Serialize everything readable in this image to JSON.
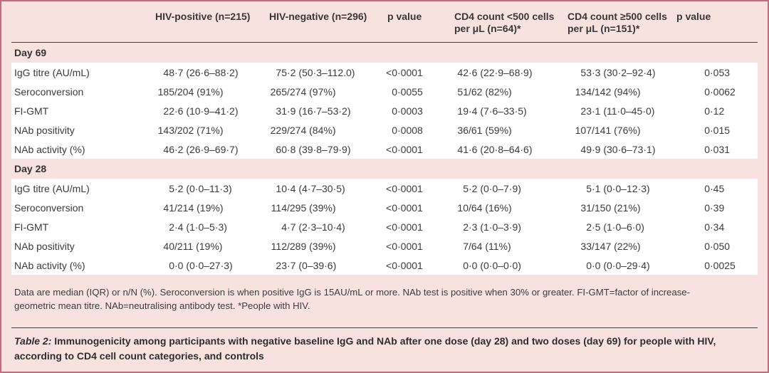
{
  "colors": {
    "panel_background": "#f7e2df",
    "panel_border": "#c76a80",
    "row_background": "#ffffff",
    "rule": "#3f3f3f",
    "text": "#3a3a3a"
  },
  "table": {
    "columns": [
      "",
      "HIV-positive (n=215)",
      "HIV-negative (n=296)",
      "p value",
      "CD4 count <500 cells per μL (n=64)*",
      "CD4 count ≥500 cells per μL (n=151)*",
      "p value"
    ],
    "sections": [
      {
        "label": "Day 69",
        "rows": [
          {
            "label": "IgG titre (AU/mL)",
            "values": [
              "48·7 (26·6–88·2)",
              "75·2 (50·3–112.0)",
              "<0·0001",
              "42·6 (22·9–68·9)",
              "53·3 (30·2–92·4)",
              "0·053"
            ]
          },
          {
            "label": "Seroconversion",
            "values": [
              "185/204 (91%)",
              "265/274 (97%)",
              "0·0055",
              "51/62 (82%)",
              "134/142 (94%)",
              "0·0062"
            ]
          },
          {
            "label": "FI-GMT",
            "values": [
              "22·6 (10·9–41·2)",
              "31·9 (16·7–53·2)",
              "0·0003",
              "19·4 (7·6–33·5)",
              "23·1 (11·0–45·0)",
              "0·12"
            ]
          },
          {
            "label": "NAb positivity",
            "values": [
              "143/202 (71%)",
              "229/274 (84%)",
              "0·0008",
              "36/61 (59%)",
              "107/141 (76%)",
              "0·015"
            ]
          },
          {
            "label": "NAb activity (%)",
            "values": [
              "46·2 (26·9–69·7)",
              "60·8 (39·8–79·9)",
              "<0·0001",
              "41·6 (20·8–64·6)",
              "49·9 (30·6–73·1)",
              "0·031"
            ]
          }
        ]
      },
      {
        "label": "Day 28",
        "rows": [
          {
            "label": "IgG titre (AU/mL)",
            "values": [
              "5·2 (0·0–11·3)",
              "10·4 (4·7–30·5)",
              "<0·0001",
              "5·2 (0·0–7·9)",
              "5·1 (0·0–12·3)",
              "0·45"
            ]
          },
          {
            "label": "Seroconversion",
            "values": [
              "41/214 (19%)",
              "114/295 (39%)",
              "<0·0001",
              "10/64 (16%)",
              "31/150 (21%)",
              "0·39"
            ]
          },
          {
            "label": "FI-GMT",
            "values": [
              "2·4 (1·0–5·3)",
              "4·7 (2·3–10·4)",
              "<0·0001",
              "2·3 (1·0–3·9)",
              "2·5 (1·0–6·0)",
              "0·34"
            ]
          },
          {
            "label": "NAb positivity",
            "values": [
              "40/211 (19%)",
              "112/289 (39%)",
              "<0·0001",
              "7/64 (11%)",
              "33/147 (22%)",
              "0·050"
            ]
          },
          {
            "label": "NAb activity (%)",
            "values": [
              "0·0 (0·0–27·3)",
              "23·7 (0–39·6)",
              "<0·0001",
              "0·0 (0·0–0·0)",
              "0·0 (0·0–29·4)",
              "0·0025"
            ]
          }
        ]
      }
    ],
    "footnote": "Data are median (IQR) or n/N (%). Seroconversion is when positive IgG is 15AU/mL or more. NAb test is positive when 30% or greater. FI-GMT=factor of increase-geometric mean titre. NAb=neutralising antibody test. *People with HIV.",
    "caption_label": "Table 2:",
    "caption_text": "Immunogenicity among participants with negative baseline IgG and NAb after one dose (day 28) and two doses (day 69) for people with HIV, according to CD4 cell count categories, and controls"
  }
}
